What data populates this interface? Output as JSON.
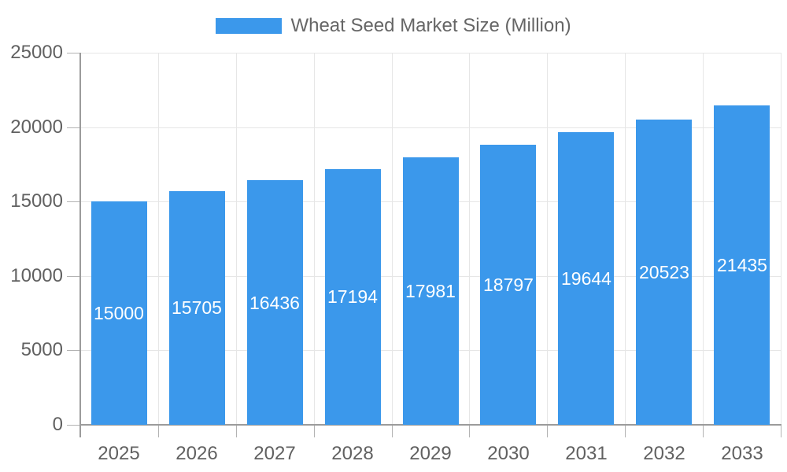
{
  "legend": {
    "label": "Wheat Seed Market Size (Million)"
  },
  "chart_data": {
    "type": "bar",
    "title": "Wheat Seed Market Size (Million)",
    "categories": [
      "2025",
      "2026",
      "2027",
      "2028",
      "2029",
      "2030",
      "2031",
      "2032",
      "2033"
    ],
    "values": [
      15000,
      15705,
      16436,
      17194,
      17981,
      18797,
      19644,
      20523,
      21435
    ],
    "series": [
      {
        "name": "Wheat Seed Market Size (Million)",
        "values": [
          15000,
          15705,
          16436,
          17194,
          17981,
          18797,
          19644,
          20523,
          21435
        ]
      }
    ],
    "xlabel": "",
    "ylabel": "",
    "ylim": [
      0,
      25000
    ],
    "ytick_step": 5000,
    "ytick_labels": [
      "0",
      "5000",
      "10000",
      "15000",
      "20000",
      "25000"
    ],
    "grid": true,
    "legend_position": "top",
    "colors": {
      "bar": "#3b98eb",
      "grid": "#e6e6e6",
      "axis": "#9b9b9b",
      "tick": "#b3b3b3",
      "text": "#616161",
      "bar_label": "#ffffff"
    }
  }
}
